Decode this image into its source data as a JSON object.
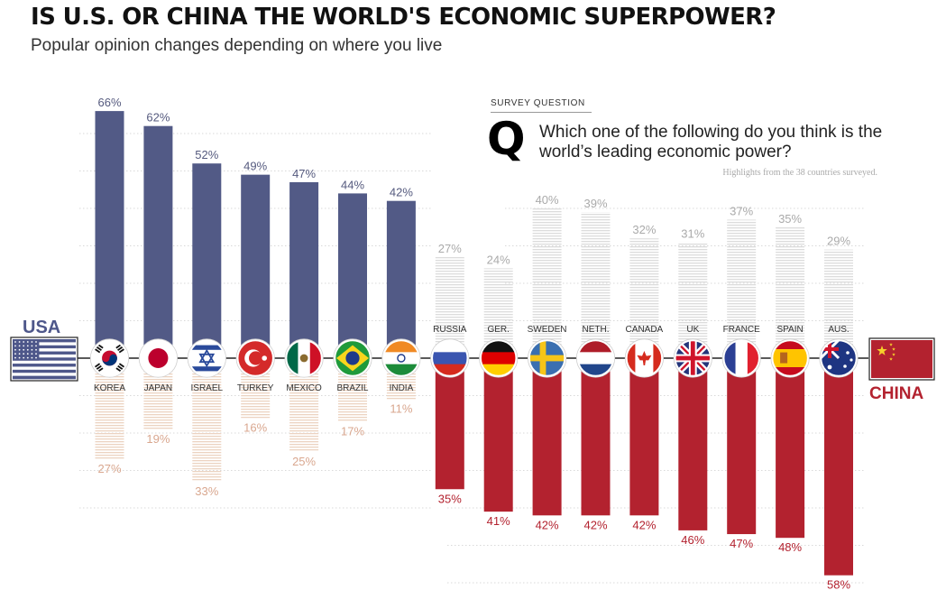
{
  "title": "IS U.S. OR CHINA THE WORLD'S ECONOMIC SUPERPOWER?",
  "subtitle": "Popular opinion changes depending on where you live",
  "survey": {
    "label": "SURVEY QUESTION",
    "q": "Q",
    "question": "Which one of the following do you think is the world’s leading economic power?",
    "note": "Highlights from the 38 countries surveyed."
  },
  "sides": {
    "us_label": "USA",
    "china_label": "CHINA"
  },
  "colors": {
    "us": "#525a86",
    "china": "#b3222f",
    "us_light": "#e2e2e2",
    "china_light": "#ecd7c8",
    "us_text": "#555a7e",
    "china_text": "#b3222f",
    "light_text": "#aaaaaa",
    "light_china_text": "#d9a78f"
  },
  "chart_data": {
    "type": "bar",
    "title": "IS U.S. OR CHINA THE WORLD'S ECONOMIC SUPERPOWER?",
    "categories": [
      "KOREA",
      "JAPAN",
      "ISRAEL",
      "TURKEY",
      "MEXICO",
      "BRAZIL",
      "INDIA",
      "RUSSIA",
      "GER.",
      "SWEDEN",
      "NETH.",
      "CANADA",
      "UK",
      "FRANCE",
      "SPAIN",
      "AUS."
    ],
    "flag_icons": [
      "south-korea-flag-icon",
      "japan-flag-icon",
      "israel-flag-icon",
      "turkey-flag-icon",
      "mexico-flag-icon",
      "brazil-flag-icon",
      "india-flag-icon",
      "russia-flag-icon",
      "germany-flag-icon",
      "sweden-flag-icon",
      "netherlands-flag-icon",
      "canada-flag-icon",
      "uk-flag-icon",
      "france-flag-icon",
      "spain-flag-icon",
      "australia-flag-icon"
    ],
    "series": [
      {
        "name": "USA",
        "values": [
          66,
          62,
          52,
          49,
          47,
          44,
          42,
          27,
          24,
          40,
          39,
          32,
          31,
          37,
          35,
          29
        ]
      },
      {
        "name": "CHINA",
        "values": [
          27,
          19,
          33,
          16,
          25,
          17,
          11,
          35,
          41,
          42,
          42,
          42,
          46,
          47,
          48,
          58
        ]
      }
    ],
    "ylim": [
      0,
      70
    ],
    "xlabel": "",
    "ylabel": "",
    "grid": true
  }
}
